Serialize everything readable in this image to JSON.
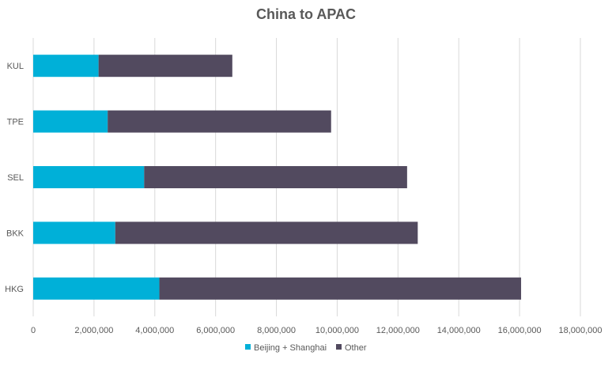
{
  "chart_data": {
    "type": "bar",
    "orientation": "horizontal",
    "stacked": true,
    "title": "China to APAC",
    "categories": [
      "KUL",
      "TPE",
      "SEL",
      "BKK",
      "HKG"
    ],
    "series": [
      {
        "name": "Beijing + Shanghai",
        "color": "#00b0d8",
        "values": [
          2150000,
          2450000,
          3650000,
          2700000,
          4150000
        ]
      },
      {
        "name": "Other",
        "color": "#524a5f",
        "values": [
          4400000,
          7350000,
          8650000,
          9950000,
          11900000
        ]
      }
    ],
    "xlim": [
      0,
      18000000
    ],
    "x_ticks": [
      "0",
      "2,000,000",
      "4,000,000",
      "6,000,000",
      "8,000,000",
      "10,000,000",
      "12,000,000",
      "14,000,000",
      "16,000,000",
      "18,000,000"
    ],
    "grid": true,
    "legend_position": "bottom"
  }
}
